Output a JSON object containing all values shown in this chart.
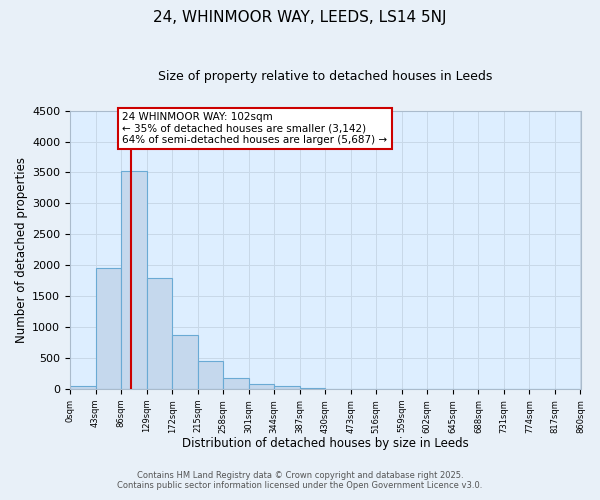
{
  "title": "24, WHINMOOR WAY, LEEDS, LS14 5NJ",
  "subtitle": "Size of property relative to detached houses in Leeds",
  "xlabel": "Distribution of detached houses by size in Leeds",
  "ylabel": "Number of detached properties",
  "bar_values": [
    50,
    1950,
    3520,
    1800,
    870,
    460,
    175,
    90,
    55,
    20,
    0,
    0,
    0,
    0,
    0,
    0,
    0,
    0,
    0,
    0
  ],
  "bin_edges": [
    0,
    43,
    86,
    129,
    172,
    215,
    258,
    301,
    344,
    387,
    430,
    473,
    516,
    559,
    602,
    645,
    688,
    731,
    774,
    817,
    860
  ],
  "tick_labels": [
    "0sqm",
    "43sqm",
    "86sqm",
    "129sqm",
    "172sqm",
    "215sqm",
    "258sqm",
    "301sqm",
    "344sqm",
    "387sqm",
    "430sqm",
    "473sqm",
    "516sqm",
    "559sqm",
    "602sqm",
    "645sqm",
    "688sqm",
    "731sqm",
    "774sqm",
    "817sqm",
    "860sqm"
  ],
  "bar_color": "#c5d8ed",
  "bar_edge_color": "#6aaad4",
  "grid_color": "#c8d8e8",
  "background_color": "#ddeeff",
  "fig_background_color": "#e8f0f8",
  "vline_x": 102,
  "vline_color": "#cc0000",
  "annotation_text": "24 WHINMOOR WAY: 102sqm\n← 35% of detached houses are smaller (3,142)\n64% of semi-detached houses are larger (5,687) →",
  "annotation_box_color": "#ffffff",
  "annotation_box_edge": "#cc0000",
  "ylim": [
    0,
    4500
  ],
  "yticks": [
    0,
    500,
    1000,
    1500,
    2000,
    2500,
    3000,
    3500,
    4000,
    4500
  ],
  "footer_line1": "Contains HM Land Registry data © Crown copyright and database right 2025.",
  "footer_line2": "Contains public sector information licensed under the Open Government Licence v3.0."
}
